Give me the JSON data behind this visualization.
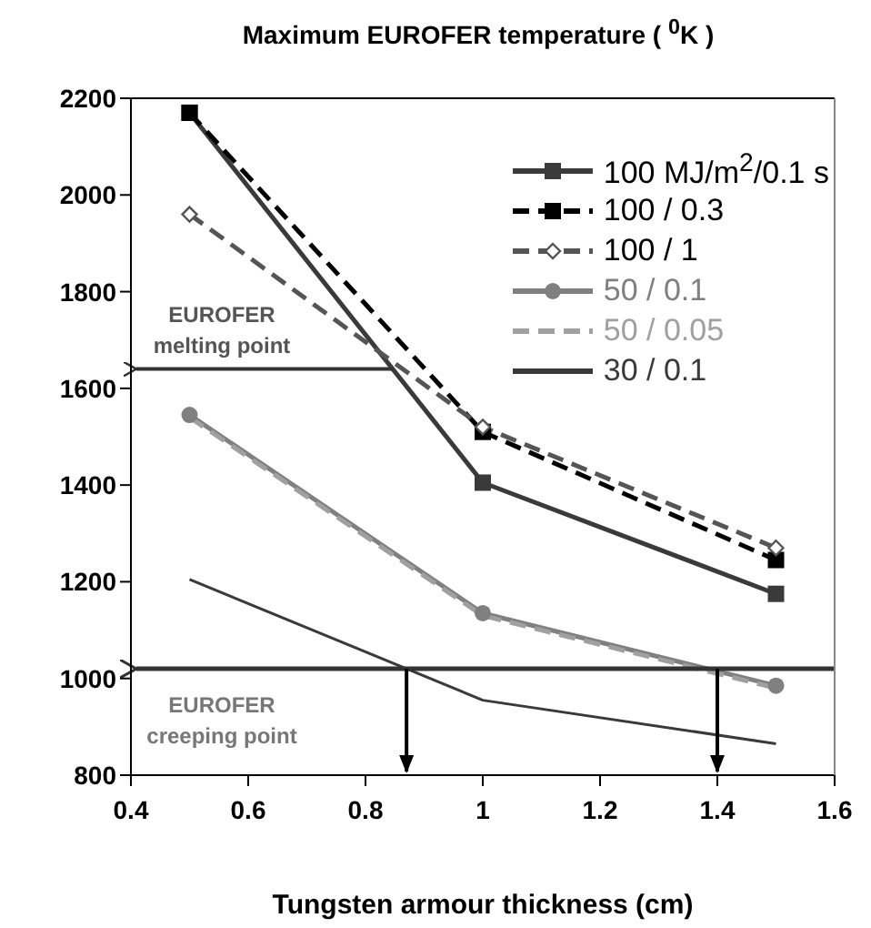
{
  "chart_data": {
    "type": "line",
    "title": "Maximum EUROFER temperature ( $^{0}$K )",
    "xlabel": "Tungsten armour thickness (cm)",
    "x": [
      0.5,
      1,
      1.5
    ],
    "series": [
      {
        "name": "100 MJ/m$^{2}$/0.1 s",
        "color": "#3a3a3a",
        "values": [
          2170,
          1405,
          1175
        ],
        "marker": "square",
        "line_style": "solid"
      },
      {
        "name": "100 / 0.3",
        "color": "#000000",
        "values": [
          2170,
          1510,
          1245
        ],
        "marker": "square",
        "line_style": "dashed"
      },
      {
        "name": "100 / 1",
        "color": "#555555",
        "values": [
          1960,
          1520,
          1270
        ],
        "marker": "diamond",
        "line_style": "dashed"
      },
      {
        "name": "50 / 0.1",
        "color": "#808080",
        "values": [
          1545,
          1135,
          985
        ],
        "marker": "circle",
        "line_style": "solid"
      },
      {
        "name": "50 / 0.05",
        "color": "#a0a0a0",
        "values": [
          1540,
          1130,
          980
        ],
        "marker": "none",
        "line_style": "dashed"
      },
      {
        "name": "30 / 0.1",
        "color": "#3a3a3a",
        "values": [
          1205,
          955,
          865
        ],
        "marker": "none",
        "line_style": "solid"
      }
    ],
    "xlim": [
      0.4,
      1.6
    ],
    "xticks": [
      0.4,
      0.6,
      0.8,
      1,
      1.2,
      1.4,
      1.6
    ],
    "ylim": [
      800,
      2200
    ],
    "yticks": [
      800,
      1000,
      1200,
      1400,
      1600,
      1800,
      2000,
      2200
    ],
    "ref_lines": [
      {
        "axis": "y",
        "value": 1640,
        "label": "EUROFER melting point",
        "color": "#333333"
      },
      {
        "axis": "y",
        "value": 1020,
        "label": "EUROFER creeping point",
        "color": "#333333"
      },
      {
        "axis": "x",
        "value": 0.87,
        "color": "#000000"
      },
      {
        "axis": "x",
        "value": 1.4,
        "color": "#000000"
      }
    ],
    "grid": false,
    "legend": "top right"
  }
}
